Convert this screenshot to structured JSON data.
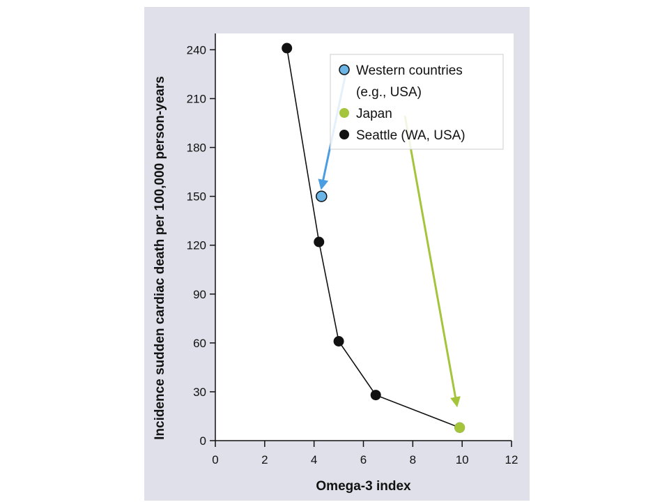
{
  "chart_data": {
    "type": "scatter",
    "xlabel": "Omega-3 index",
    "ylabel": "Incidence sudden cardiac death per 100,000 person-years",
    "xlim": [
      0,
      12
    ],
    "ylim": [
      0,
      250
    ],
    "xticks": [
      0,
      2,
      4,
      6,
      8,
      10,
      12
    ],
    "yticks": [
      0,
      30,
      60,
      90,
      120,
      150,
      180,
      210,
      240
    ],
    "grid": false,
    "legend_position": "top-right",
    "series": [
      {
        "name": "Western countries (e.g., USA)",
        "color": "#6ab4e6",
        "points": [
          {
            "x": 4.3,
            "y": 150
          }
        ]
      },
      {
        "name": "Japan",
        "color": "#a4c43c",
        "points": [
          {
            "x": 9.9,
            "y": 8
          }
        ]
      },
      {
        "name": "Seattle (WA, USA)",
        "color": "#111111",
        "line": true,
        "points": [
          {
            "x": 2.9,
            "y": 241
          },
          {
            "x": 4.2,
            "y": 122
          },
          {
            "x": 5.0,
            "y": 61
          },
          {
            "x": 6.5,
            "y": 28
          },
          {
            "x": 9.9,
            "y": 8
          }
        ]
      }
    ],
    "legend": [
      {
        "lines": [
          "Western countries",
          "(e.g., USA)"
        ],
        "color": "#6ab4e6",
        "outlined": true
      },
      {
        "lines": [
          "Japan"
        ],
        "color": "#a4c43c",
        "outlined": false
      },
      {
        "lines": [
          "Seattle (WA, USA)"
        ],
        "color": "#111111",
        "outlined": false
      }
    ],
    "arrows": [
      {
        "color": "#4a9de0",
        "from_series": "Western countries (e.g., USA)",
        "to_series": "Western countries (e.g., USA)"
      },
      {
        "color": "#a4c43c",
        "from_series": "Japan",
        "to_series": "Japan"
      }
    ]
  }
}
